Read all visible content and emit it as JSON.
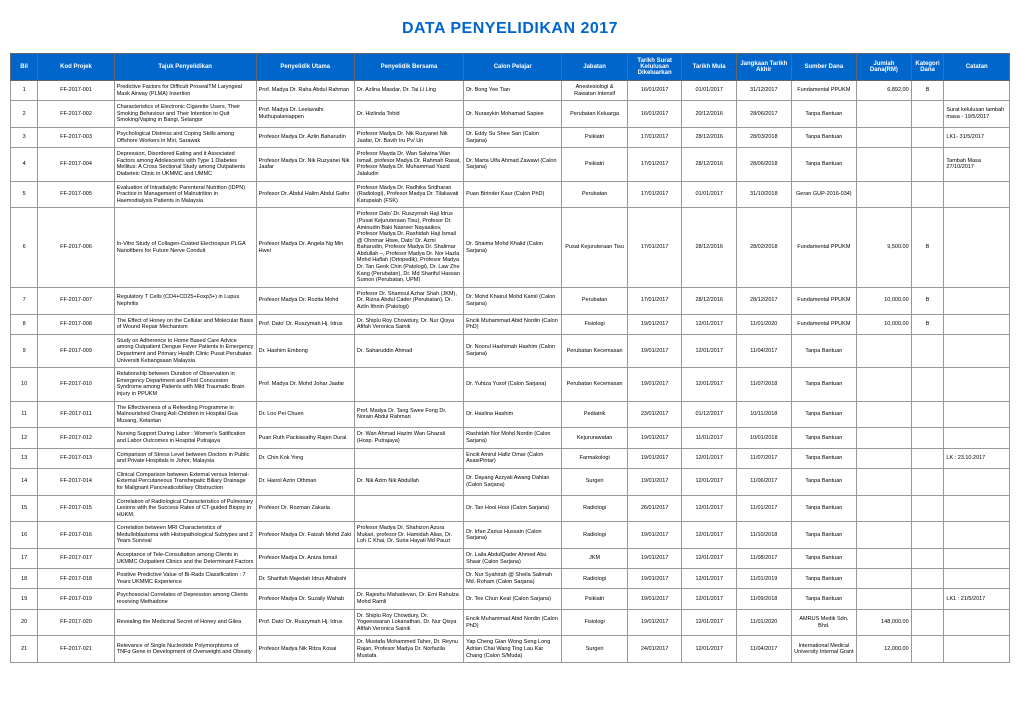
{
  "title": "DATA PENYELIDIKAN 2017",
  "columns": [
    "Bil",
    "Kod Projek",
    "Tajuk Penyelidikan",
    "Penyelidik Utama",
    "Penyelidik Bersama",
    "Calon Pelajar",
    "Jabatan",
    "Tarikh Surat Kelulusan Dikeluarkan",
    "Tarikh Mula",
    "Jangkaan Tarikh Akhir",
    "Sumber Dana",
    "Jumlah Dana(RM)",
    "Kategori Dana",
    "Catatan"
  ],
  "rows": [
    {
      "bil": "1",
      "kod": "FF-2017-001",
      "tajuk": "Predictive Factors for Difficult ProsealTM Laryngeal Mask Airway (PLMA) Insertion",
      "utama": "Prof. Madya Dr. Raha Abdul Rahman",
      "bersama": "Dr. Azlina Masdar, Dr. Tai Li Ling",
      "pelajar": "Dr. Bong Yee Tian",
      "jabatan": "Anestesiologi & Rawatan Intensif",
      "tarikh_surat": "16/01/2017",
      "tarikh_mula": "01/01/2017",
      "jangkaan": "31/12/2017",
      "sumber": "Fundamental PPUKM",
      "jumlah": "6,892.00",
      "kategori": "B",
      "catatan": ""
    },
    {
      "bil": "2",
      "kod": "FF-2017-002",
      "tajuk": "Characteristics of Electronic Cigarette Users, Their Smoking Behaviour and Their Intention to Quit Smoking/Vaping in Bangi, Selangor",
      "utama": "Prof. Madya Dr. Leelavathi Muthupalaniappen",
      "bersama": "Dr. Hizlinda Tohid",
      "pelajar": "Dr. Nurasykin Mohamad Sapiee",
      "jabatan": "Perubatan Keluarga",
      "tarikh_surat": "16/01/2017",
      "tarikh_mula": "20/12/2016",
      "jangkaan": "28/06/2017",
      "sumber": "Tanpa Bantuan",
      "jumlah": "",
      "kategori": "",
      "catatan": "Surat kelulusan tambah masa - 19/5/2017"
    },
    {
      "bil": "3",
      "kod": "FF-2017-003",
      "tajuk": "Psychological Distress and Coping Skills among Offshore Workers in Miri, Sarawak",
      "utama": "Profesor Madya Dr. Azlin Baharudin",
      "bersama": "Profesor Madya Dr. Nik Ruzyanei Nik Jaafar, Dr. Bavih Iru Pv/ Un",
      "pelajar": "Dr. Eddy Su Shee San (Calon Sarjana)",
      "jabatan": "Psikiatri",
      "tarikh_surat": "17/01/2017",
      "tarikh_mula": "28/12/2016",
      "jangkaan": "28/03/2018",
      "sumber": "Tanpa Bantuan",
      "jumlah": "",
      "kategori": "",
      "catatan": "LK1- 31/5/2017"
    },
    {
      "bil": "4",
      "kod": "FF-2017-004",
      "tajuk": "Depression, Disordered Eating and it Associated Factors among Adolescents with Type 1 Diabetes Mellitus: A Cross Sectional Study among Outpatients Diabeteic Clinic in UKMMC and UMMC",
      "utama": "Profesor Madya Dr. Nik Ruzyanei Nik Jaafar",
      "bersama": "Profesor Mayda Dr. Wan Salwina Wan Ismail, profesor Madya Dr. Rahmah Rasat, Profesor Madya Dr. Muhammad Yazid Jalaludin",
      "pelajar": "Dr. Marta Ulfa Ahmad Zawawi (Calon Sarjana)",
      "jabatan": "Psikiatri",
      "tarikh_surat": "17/01/2017",
      "tarikh_mula": "28/12/2016",
      "jangkaan": "28/06/2018",
      "sumber": "Tanpa Bantuan",
      "jumlah": "",
      "kategori": "",
      "catatan": "Tambah Masa 27/10/2017"
    },
    {
      "bil": "5",
      "kod": "FF-2017-005",
      "tajuk": "Evaluation of Intradialytic Parenteral Nutrition (IDPN) Practice in Management of Malnutrition in Haemodialysis Patients in Malaysia",
      "utama": "Profesor Dr. Abdul Halim Abdul Gafor",
      "bersama": "Profesor Madya Dr. Radhika Sridharan (Radiologi), Profesor Madya Dr. Tilakavati Karupaiah (FSK)",
      "pelajar": "Puan Birinder Kaur (Calon PhD)",
      "jabatan": "Perubatan",
      "tarikh_surat": "17/01/2017",
      "tarikh_mula": "01/01/2017",
      "jangkaan": "31/10/2018",
      "sumber": "Geran GUP-2016-034)",
      "jumlah": "",
      "kategori": "",
      "catatan": ""
    },
    {
      "bil": "6",
      "kod": "FF-2017-006",
      "tajuk": "In-Vitro Study of Collagen-Coated Electrospun PLGA Nanofibers for Future Nerve Conduit",
      "utama": "Profesor Madya Dr. Angela Ng Min Hwei",
      "bersama": "Profesor Dato' Dr. Ruszymah Haji Idrus (Pusat Kejuruteraan Tisu), Profesor Dr. Aminudin Baki Nasreer Nayaaikov, Profesor Madya Dr. Rashidah Haji Ismail @ Ohnmar Htwe, Dato' Dr. Azmi Baharudin, Profesor Madya Dr. Shalimar Abdullah –, Profesor Madya Dr. Nor Hazla Mohd Haflah (Ortopedik), Profesor Madya Dr. Tan Geok Chin (Patologi), Dr. Law Zhe Kang (Perubatan), Dr. Md Shariful Hassan Sumon (Perubatan, UPM)",
      "pelajar": "Dr. Shaima Mohd Khalid (Calon Sarjana)",
      "jabatan": "Pusat Kejuruteraan Tisu",
      "tarikh_surat": "17/01/2017",
      "tarikh_mula": "28/12/2016",
      "jangkaan": "28/02/2018",
      "sumber": "Fundamental PPUKM",
      "jumlah": "9,500.00",
      "kategori": "B",
      "catatan": ""
    },
    {
      "bil": "7",
      "kod": "FF-2017-007",
      "tajuk": "Regulatory T Cells (CD4+CD25+Foxp3+) in Lupus Nephritis",
      "utama": "Profesor Madya Dr. Rozita Mohd",
      "bersama": "Profesor Dr. Shamsul Azhar Shah (JKM), Dr. Rizna Abdul Cader (Perubatan), Dr. Azlin Ithnin (Patologi)",
      "pelajar": "Dr. Mohd Khairul Mohd Kamil (Calon Sarjana)",
      "jabatan": "Perubatan",
      "tarikh_surat": "17/01/2017",
      "tarikh_mula": "28/12/2016",
      "jangkaan": "28/12/2017",
      "sumber": "Fundamental PPUKM",
      "jumlah": "10,000.00",
      "kategori": "B",
      "catatan": ""
    },
    {
      "bil": "8",
      "kod": "FF-2017-008",
      "tajuk": "The Effect of Honey on the Cellular and Molecular Basis of Wound Repair Mechanism",
      "utama": "Prof. Dato' Dr. Ruszymah Hj. Idrus",
      "bersama": "Dr. Shiplu Roy Chowdury, Dr. Nur Qisya Afifah Veronica Sainik",
      "pelajar": "Encik Muhammad Abid Nordin (Calon PhD)",
      "jabatan": "Fisiologi",
      "tarikh_surat": "19/01/2017",
      "tarikh_mula": "12/01/2017",
      "jangkaan": "11/01/2020",
      "sumber": "Fundamental PPUKM",
      "jumlah": "10,000.00",
      "kategori": "B",
      "catatan": ""
    },
    {
      "bil": "9",
      "kod": "FF-2017-009",
      "tajuk": "Study on Adherence to Home Based Care Advice among Outpatient Dengue Fever Patients in Emergency Department and Primary Health Clinic Pusat Perubatan Universiti Kebangsaan Malaysia",
      "utama": "Dr. Hashim Embong",
      "bersama": "Dr. Saharuddin Ahmad",
      "pelajar": "Dr. Noorul Hashimah Hashim (Calon Sarjana)",
      "jabatan": "Perubatan Kecemasan",
      "tarikh_surat": "19/01/2017",
      "tarikh_mula": "12/01/2017",
      "jangkaan": "11/04/2017",
      "sumber": "Tanpa Bantuan",
      "jumlah": "",
      "kategori": "",
      "catatan": ""
    },
    {
      "bil": "10",
      "kod": "FF-2017-010",
      "tajuk": "Relationship between Duration of Observation in Emergency Department and Post Concussion Syndrome among Patients with Mild Traumatic Brain Injury in PPUKM",
      "utama": "Prof. Madya Dr. Mohd Johar Jaafar",
      "bersama": "",
      "pelajar": "Dr. Yuhiza Yusof (Calon Sarjana)",
      "jabatan": "Perubatan Kecemasan",
      "tarikh_surat": "19/01/2017",
      "tarikh_mula": "12/01/2017",
      "jangkaan": "11/07/2018",
      "sumber": "Tanpa Bantuan",
      "jumlah": "",
      "kategori": "",
      "catatan": ""
    },
    {
      "bil": "11",
      "kod": "FF-2017-011",
      "tajuk": "The Effectiveness of a Refeeding Programme in Malnourished Orang Asli Children in Hospital Gua Musang, Kelantan",
      "utama": "Dr. Loo Pei Chuen",
      "bersama": "Prof. Madya Dr. Tang Swee Fong Dr. Norain Abdul Rahman",
      "pelajar": "Dr. Haslina Hashim",
      "jabatan": "Pediatrik",
      "tarikh_surat": "23/01/2017",
      "tarikh_mula": "01/12/2017",
      "jangkaan": "10/11/2018",
      "sumber": "Tanpa Bantuan",
      "jumlah": "",
      "kategori": "",
      "catatan": ""
    },
    {
      "bil": "12",
      "kod": "FF-2017-012",
      "tajuk": "Nursing Support During Labor : Women's Satification and Labor Outcomes in Hospital Putrajaya",
      "utama": "Puan Ruth Packiavathy Rajen Durai",
      "bersama": "Dr. Wan Ahmad Hazim Wan Ghazali (Hosp. Putrajaya)",
      "pelajar": "Rashidah Nor Mohd Nordin (Calon Sarjana)",
      "jabatan": "Kejururawatan",
      "tarikh_surat": "19/01/2017",
      "tarikh_mula": "11/01/2017",
      "jangkaan": "10/01/2018",
      "sumber": "Tanpa Bantuan",
      "jumlah": "",
      "kategori": "",
      "catatan": ""
    },
    {
      "bil": "13",
      "kod": "FF-2017-013",
      "tajuk": "Comparison of Stress Level between Doctors in Public and Private Hospitals in Johor, Malaysia",
      "utama": "Dr. Chin Kok Yong",
      "bersama": "",
      "pelajar": "Encik Amirul Hafiz Omar (Calon AsasiPintar)",
      "jabatan": "Farmakologi",
      "tarikh_surat": "19/01/2017",
      "tarikh_mula": "12/01/2017",
      "jangkaan": "11/07/2017",
      "sumber": "Tanpa Bantuan",
      "jumlah": "",
      "kategori": "",
      "catatan": "LK : 23.10.2017"
    },
    {
      "bil": "14",
      "kod": "FF-2017-014",
      "tajuk": "Clinical Comparison between External versus Internal-External Percutaneous Transhepatic Biliary Drainage for Malignant Pancreaticobiliary Obstruction",
      "utama": "Dr. Hairol Azrin Othman",
      "bersama": "Dr. Nik Azim Nik Abdullah",
      "pelajar": "Dr. Dayang Azzyati Awang Dahlan (Calon Sarjana)",
      "jabatan": "Surgeri",
      "tarikh_surat": "19/01/2017",
      "tarikh_mula": "12/01/2017",
      "jangkaan": "11/06/2017",
      "sumber": "Tanpa Bantuan",
      "jumlah": "",
      "kategori": "",
      "catatan": ""
    },
    {
      "bil": "15",
      "kod": "FF-2017-015",
      "tajuk": "Correlation of Radiological Characteristics of Pulmonary Lesions with the Success Rates of CT-guided Biopsy in HUKM.",
      "utama": "Profesor Dr. Rozman Zakaria",
      "bersama": "",
      "pelajar": "Dr. Tan Hooi Hooi (Calon Sarjana)",
      "jabatan": "Radiologi",
      "tarikh_surat": "26/01/2017",
      "tarikh_mula": "12/01/2017",
      "jangkaan": "11/01/2017",
      "sumber": "Tanpa Bantuan",
      "jumlah": "",
      "kategori": "",
      "catatan": ""
    },
    {
      "bil": "16",
      "kod": "FF-2017-016",
      "tajuk": "Correlation between MRI Characteristics of Medulloblastoma with Histopathological Subtypes and 2 Years Survival",
      "utama": "Profesor Madya Dr. Faizah Mohd Zaki",
      "bersama": "Profesor Madya Dr. Shahizon Azura Mukari, profesor Dr. Hamidah Alias, Dr. Loh C Khai, Dr. Suria Hayati Md Pauzi",
      "pelajar": "Dr. Irfan Zarius Hussain (Calon Sarjana)",
      "jabatan": "Radiologi",
      "tarikh_surat": "19/01/2017",
      "tarikh_mula": "12/01/2017",
      "jangkaan": "11/10/2018",
      "sumber": "Tanpa Bantuan",
      "jumlah": "",
      "kategori": "",
      "catatan": ""
    },
    {
      "bil": "17",
      "kod": "FF-2017-017",
      "tajuk": "Acceptance of Tele-Consultation among Clients in UKMMC Outpatient Clinics and the Determinant Factors",
      "utama": "Profesor Madya Dr. Aniza Ismail",
      "bersama": "",
      "pelajar": "Dr. Laila AbdulQader Ahmed Abu Shaar (Calon Sarjana)",
      "jabatan": "JKM",
      "tarikh_surat": "19/01/2017",
      "tarikh_mula": "12/01/2017",
      "jangkaan": "11/08/2017",
      "sumber": "Tanpa Bantuan",
      "jumlah": "",
      "kategori": "",
      "catatan": ""
    },
    {
      "bil": "18",
      "kod": "FF-2017-018",
      "tajuk": "Positive Predictive Value of Bi-Rads Classification : 7 Years UKMMC Experience",
      "utama": "Dr. Sharifah Majedah Idrus Alhabshi",
      "bersama": "",
      "pelajar": "Dr. Nur Syahirah @ Sheila Salimah Md. Roham (Calon Sarjana)",
      "jabatan": "Radiologi",
      "tarikh_surat": "19/01/2017",
      "tarikh_mula": "12/01/2017",
      "jangkaan": "11/01/2019",
      "sumber": "Tanpa Bantuan",
      "jumlah": "",
      "kategori": "",
      "catatan": ""
    },
    {
      "bil": "19",
      "kod": "FF-2017-019",
      "tajuk": "Psychosocial Correlates of Depression among Clients receiving Methadone",
      "utama": "Profesor Madya Dr. Suzaily Wahab",
      "bersama": "Dr. Rajeshu Mahadevan, Dr. Emi Rahulza Mohd Ramli",
      "pelajar": "Dr. Tee Chun Keat   (Calon Sarjana)",
      "jabatan": "Psikiatri",
      "tarikh_surat": "19/01/2017",
      "tarikh_mula": "12/01/2017",
      "jangkaan": "11/09/2018",
      "sumber": "Tanpa Bantuan",
      "jumlah": "",
      "kategori": "",
      "catatan": "LK1 : 21/5/2017"
    },
    {
      "bil": "20",
      "kod": "FF-2017-020",
      "tajuk": "Revealing the Medicinal Secret of Honey and Gilea",
      "utama": "Prof. Dato' Dr. Ruszymah Hj. Idrus",
      "bersama": "Dr. Shiplu Roy Chowdury, Dr. Yogeeswaran Lokanathan, Dr. Nur Qisya Afifah Veronica Sainik",
      "pelajar": "Encik Muhammad Abid Nordin (Calon PhD)",
      "jabatan": "Fisiologi",
      "tarikh_surat": "19/01/2017",
      "tarikh_mula": "12/01/2017",
      "jangkaan": "11/01/2020",
      "sumber": "AMRUS Medik Sdn. Bhd.",
      "jumlah": "148,000.00",
      "kategori": "",
      "catatan": ""
    },
    {
      "bil": "21",
      "kod": "FF-2017-021",
      "tajuk": "Relevance of Single Nucleotide Polymorphisms of TNFα Gene in Development of Overweight and Obesity",
      "utama": "Profesor Madya Nik Ritza Kosai",
      "bersama": "Dr. Mustafa Mohammed Taher, Dr. Reynu Rajan, Profesor Madya Dr. Norfazila Mustafa",
      "pelajar": "Yap Cheng Gian Wong Seng Long Adrian Chai Wang Ting Lau Kar Chang (Calon S/Muda)",
      "jabatan": "Surgeri",
      "tarikh_surat": "24/01/2017",
      "tarikh_mula": "12/01/2017",
      "jangkaan": "11/04/2017",
      "sumber": "International Medical University Internal Grant",
      "jumlah": "12,000.00",
      "kategori": "",
      "catatan": ""
    }
  ]
}
